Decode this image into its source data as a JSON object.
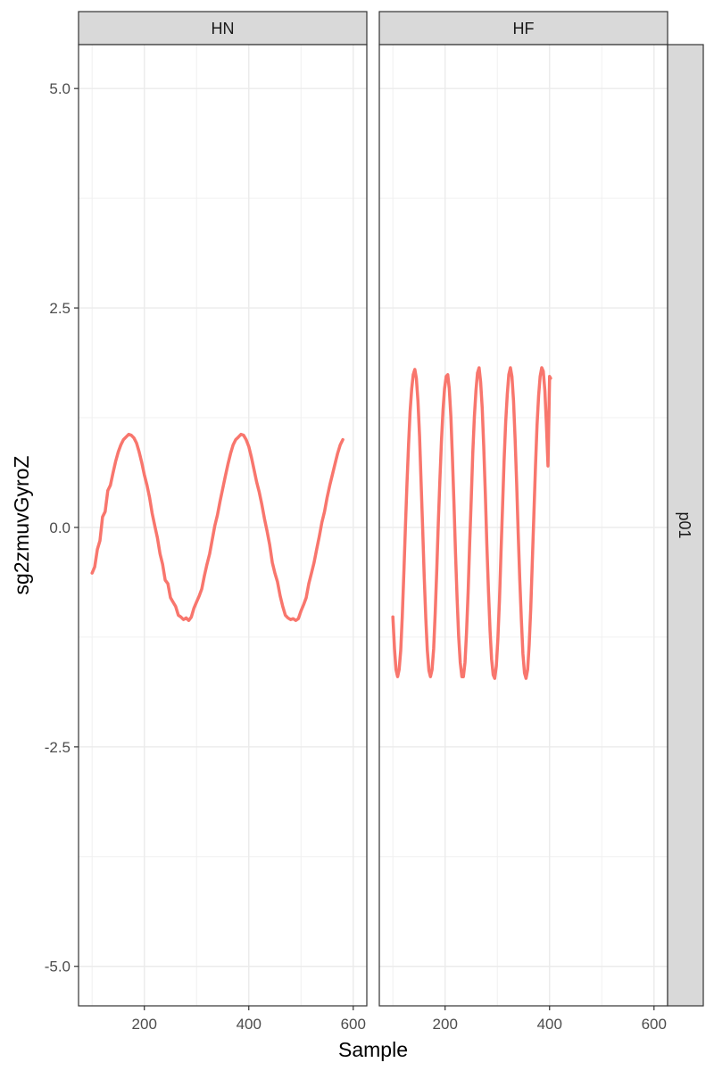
{
  "chart_data": {
    "type": "line",
    "xlabel": "Sample",
    "ylabel": "sg2zmuvGyroZ",
    "row_strip": "p01",
    "xlim": [
      74,
      626
    ],
    "ylim": [
      -5.45,
      5.5
    ],
    "xticks": [
      200,
      400,
      600
    ],
    "yticks": [
      -5.0,
      -2.5,
      0.0,
      2.5,
      5.0
    ],
    "ytick_labels": [
      "-5.0",
      "-2.5",
      "0.0",
      "2.5",
      "5.0"
    ],
    "grid": true,
    "line_color": "#F8766D",
    "panels": [
      {
        "strip": "HN",
        "points": [
          [
            100,
            -0.52
          ],
          [
            105,
            -0.45
          ],
          [
            110,
            -0.25
          ],
          [
            115,
            -0.15
          ],
          [
            120,
            0.12
          ],
          [
            125,
            0.18
          ],
          [
            130,
            0.42
          ],
          [
            135,
            0.48
          ],
          [
            140,
            0.62
          ],
          [
            145,
            0.75
          ],
          [
            150,
            0.86
          ],
          [
            155,
            0.94
          ],
          [
            160,
            1.0
          ],
          [
            165,
            1.03
          ],
          [
            170,
            1.06
          ],
          [
            175,
            1.05
          ],
          [
            180,
            1.02
          ],
          [
            185,
            0.96
          ],
          [
            190,
            0.86
          ],
          [
            195,
            0.74
          ],
          [
            200,
            0.6
          ],
          [
            205,
            0.48
          ],
          [
            210,
            0.34
          ],
          [
            215,
            0.16
          ],
          [
            220,
            0.02
          ],
          [
            225,
            -0.12
          ],
          [
            230,
            -0.3
          ],
          [
            235,
            -0.42
          ],
          [
            240,
            -0.6
          ],
          [
            245,
            -0.64
          ],
          [
            250,
            -0.8
          ],
          [
            255,
            -0.85
          ],
          [
            260,
            -0.9
          ],
          [
            265,
            -1.0
          ],
          [
            270,
            -1.02
          ],
          [
            275,
            -1.05
          ],
          [
            280,
            -1.03
          ],
          [
            285,
            -1.06
          ],
          [
            290,
            -1.02
          ],
          [
            295,
            -0.92
          ],
          [
            300,
            -0.85
          ],
          [
            305,
            -0.78
          ],
          [
            310,
            -0.7
          ],
          [
            315,
            -0.55
          ],
          [
            320,
            -0.42
          ],
          [
            325,
            -0.3
          ],
          [
            330,
            -0.14
          ],
          [
            335,
            0.02
          ],
          [
            340,
            0.14
          ],
          [
            345,
            0.3
          ],
          [
            350,
            0.44
          ],
          [
            355,
            0.58
          ],
          [
            360,
            0.72
          ],
          [
            365,
            0.84
          ],
          [
            370,
            0.94
          ],
          [
            375,
            1.0
          ],
          [
            380,
            1.03
          ],
          [
            385,
            1.06
          ],
          [
            390,
            1.05
          ],
          [
            395,
            1.0
          ],
          [
            400,
            0.92
          ],
          [
            405,
            0.8
          ],
          [
            410,
            0.66
          ],
          [
            415,
            0.52
          ],
          [
            420,
            0.4
          ],
          [
            425,
            0.26
          ],
          [
            430,
            0.1
          ],
          [
            435,
            -0.04
          ],
          [
            440,
            -0.2
          ],
          [
            445,
            -0.4
          ],
          [
            450,
            -0.52
          ],
          [
            455,
            -0.62
          ],
          [
            460,
            -0.78
          ],
          [
            465,
            -0.9
          ],
          [
            470,
            -1.0
          ],
          [
            475,
            -1.03
          ],
          [
            480,
            -1.05
          ],
          [
            485,
            -1.04
          ],
          [
            490,
            -1.06
          ],
          [
            495,
            -1.04
          ],
          [
            500,
            -0.95
          ],
          [
            505,
            -0.88
          ],
          [
            510,
            -0.8
          ],
          [
            515,
            -0.64
          ],
          [
            520,
            -0.52
          ],
          [
            525,
            -0.4
          ],
          [
            530,
            -0.25
          ],
          [
            535,
            -0.1
          ],
          [
            540,
            0.06
          ],
          [
            545,
            0.18
          ],
          [
            550,
            0.34
          ],
          [
            555,
            0.48
          ],
          [
            560,
            0.6
          ],
          [
            565,
            0.72
          ],
          [
            570,
            0.84
          ],
          [
            575,
            0.94
          ],
          [
            580,
            1.0
          ]
        ]
      },
      {
        "strip": "HF",
        "points": [
          [
            100,
            -1.02
          ],
          [
            103,
            -1.38
          ],
          [
            106,
            -1.62
          ],
          [
            109,
            -1.7
          ],
          [
            112,
            -1.62
          ],
          [
            115,
            -1.4
          ],
          [
            118,
            -1.02
          ],
          [
            121,
            -0.52
          ],
          [
            124,
            0.02
          ],
          [
            127,
            0.5
          ],
          [
            130,
            0.95
          ],
          [
            133,
            1.32
          ],
          [
            136,
            1.58
          ],
          [
            139,
            1.74
          ],
          [
            142,
            1.8
          ],
          [
            145,
            1.7
          ],
          [
            148,
            1.44
          ],
          [
            151,
            1.04
          ],
          [
            154,
            0.52
          ],
          [
            157,
            -0.02
          ],
          [
            160,
            -0.56
          ],
          [
            163,
            -1.04
          ],
          [
            166,
            -1.4
          ],
          [
            169,
            -1.63
          ],
          [
            172,
            -1.7
          ],
          [
            175,
            -1.62
          ],
          [
            178,
            -1.38
          ],
          [
            181,
            -0.98
          ],
          [
            184,
            -0.48
          ],
          [
            187,
            0.05
          ],
          [
            190,
            0.55
          ],
          [
            193,
            0.98
          ],
          [
            196,
            1.34
          ],
          [
            199,
            1.58
          ],
          [
            202,
            1.72
          ],
          [
            205,
            1.74
          ],
          [
            208,
            1.58
          ],
          [
            211,
            1.26
          ],
          [
            214,
            0.8
          ],
          [
            217,
            0.26
          ],
          [
            220,
            -0.3
          ],
          [
            223,
            -0.82
          ],
          [
            226,
            -1.24
          ],
          [
            229,
            -1.54
          ],
          [
            232,
            -1.7
          ],
          [
            235,
            -1.7
          ],
          [
            238,
            -1.54
          ],
          [
            241,
            -1.2
          ],
          [
            244,
            -0.74
          ],
          [
            247,
            -0.2
          ],
          [
            250,
            0.32
          ],
          [
            253,
            0.84
          ],
          [
            256,
            1.26
          ],
          [
            259,
            1.56
          ],
          [
            262,
            1.76
          ],
          [
            265,
            1.82
          ],
          [
            268,
            1.66
          ],
          [
            271,
            1.36
          ],
          [
            274,
            0.92
          ],
          [
            277,
            0.38
          ],
          [
            280,
            -0.2
          ],
          [
            283,
            -0.72
          ],
          [
            286,
            -1.18
          ],
          [
            289,
            -1.5
          ],
          [
            292,
            -1.68
          ],
          [
            295,
            -1.72
          ],
          [
            298,
            -1.58
          ],
          [
            301,
            -1.28
          ],
          [
            304,
            -0.84
          ],
          [
            307,
            -0.3
          ],
          [
            310,
            0.24
          ],
          [
            313,
            0.76
          ],
          [
            316,
            1.2
          ],
          [
            319,
            1.52
          ],
          [
            322,
            1.74
          ],
          [
            325,
            1.82
          ],
          [
            328,
            1.72
          ],
          [
            331,
            1.44
          ],
          [
            334,
            1.02
          ],
          [
            337,
            0.5
          ],
          [
            340,
            -0.06
          ],
          [
            343,
            -0.6
          ],
          [
            346,
            -1.06
          ],
          [
            349,
            -1.44
          ],
          [
            352,
            -1.66
          ],
          [
            355,
            -1.72
          ],
          [
            358,
            -1.62
          ],
          [
            361,
            -1.34
          ],
          [
            364,
            -0.92
          ],
          [
            367,
            -0.4
          ],
          [
            370,
            0.15
          ],
          [
            373,
            0.7
          ],
          [
            376,
            1.16
          ],
          [
            379,
            1.5
          ],
          [
            382,
            1.72
          ],
          [
            385,
            1.82
          ],
          [
            388,
            1.78
          ],
          [
            391,
            1.56
          ],
          [
            394,
            1.18
          ],
          [
            397,
            0.7
          ],
          [
            400,
            1.72
          ],
          [
            402,
            1.7
          ]
        ]
      }
    ]
  }
}
